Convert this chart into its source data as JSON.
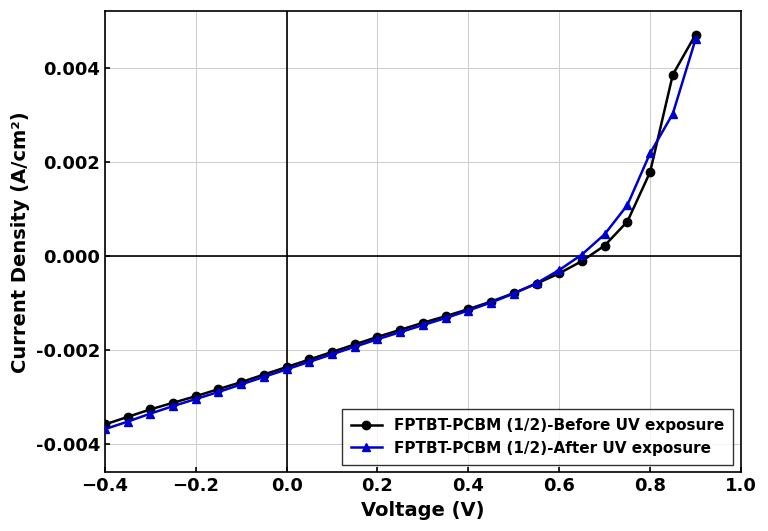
{
  "title": "",
  "xlabel": "Voltage (V)",
  "ylabel": "Current Density (A/cm²)",
  "xlim": [
    -0.4,
    1.0
  ],
  "ylim": [
    -0.0046,
    0.0052
  ],
  "legend_labels": [
    "FPTBT-PCBM (1/2)-Before UV exposure",
    "FPTBT-PCBM (1/2)-After UV exposure"
  ],
  "before_uv": {
    "color": "#000000",
    "marker": "o",
    "x": [
      -0.4,
      -0.35,
      -0.3,
      -0.25,
      -0.2,
      -0.15,
      -0.1,
      -0.05,
      0.0,
      0.05,
      0.1,
      0.15,
      0.2,
      0.25,
      0.3,
      0.35,
      0.4,
      0.45,
      0.5,
      0.55,
      0.6,
      0.65,
      0.7,
      0.75,
      0.8,
      0.85,
      0.9
    ],
    "y": [
      -0.00358,
      -0.00342,
      -0.00326,
      -0.00312,
      -0.00298,
      -0.00283,
      -0.00268,
      -0.00252,
      -0.00236,
      -0.0022,
      -0.00204,
      -0.00188,
      -0.00172,
      -0.00157,
      -0.00142,
      -0.00128,
      -0.00113,
      -0.00097,
      -0.00079,
      -0.00059,
      -0.00037,
      -0.00011,
      0.00022,
      0.00073,
      0.00178,
      0.00385,
      0.0047
    ]
  },
  "after_uv": {
    "color": "#0000cc",
    "marker": "^",
    "x": [
      -0.4,
      -0.35,
      -0.3,
      -0.25,
      -0.2,
      -0.15,
      -0.1,
      -0.05,
      0.0,
      0.05,
      0.1,
      0.15,
      0.2,
      0.25,
      0.3,
      0.35,
      0.4,
      0.45,
      0.5,
      0.55,
      0.6,
      0.65,
      0.7,
      0.75,
      0.8,
      0.85,
      0.9
    ],
    "y": [
      -0.00368,
      -0.00352,
      -0.00335,
      -0.00319,
      -0.00304,
      -0.00289,
      -0.00273,
      -0.00257,
      -0.00241,
      -0.00225,
      -0.00209,
      -0.00193,
      -0.00177,
      -0.00162,
      -0.00147,
      -0.00132,
      -0.00116,
      -0.00099,
      -0.0008,
      -0.00058,
      -0.0003,
      3e-05,
      0.00046,
      0.00108,
      0.00218,
      0.00302,
      0.0046
    ]
  },
  "xticks": [
    -0.4,
    -0.2,
    0.0,
    0.2,
    0.4,
    0.6,
    0.8,
    1.0
  ],
  "yticks": [
    -0.004,
    -0.002,
    0.0,
    0.002,
    0.004
  ],
  "background_color": "#ffffff",
  "legend_loc": "lower right",
  "font_size_label": 14,
  "font_size_tick": 13,
  "font_size_legend": 11,
  "linewidth": 1.8,
  "markersize": 6
}
